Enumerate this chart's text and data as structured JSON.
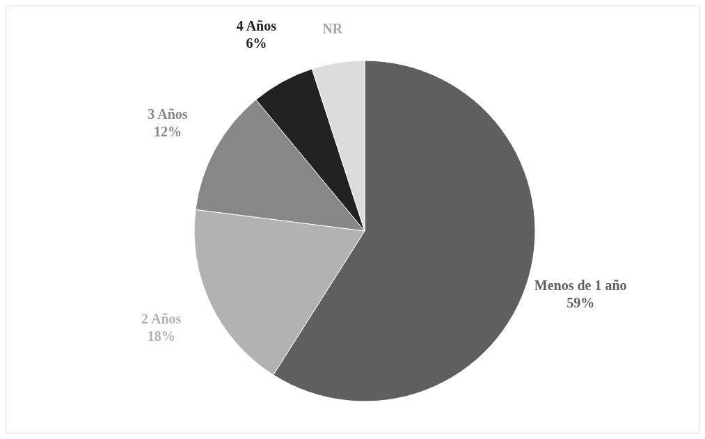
{
  "chart_data": {
    "type": "pie",
    "categories": [
      "Menos de 1 año",
      "2 Años",
      "3 Años",
      "4 Años",
      "NR"
    ],
    "values": [
      59,
      18,
      12,
      6,
      5
    ],
    "value_labels": [
      "59%",
      "18%",
      "12%",
      "6%",
      null
    ],
    "colors": [
      "#5f5f5f",
      "#b2b2b2",
      "#878787",
      "#222222",
      "#dcdcdc"
    ],
    "legend": false
  }
}
